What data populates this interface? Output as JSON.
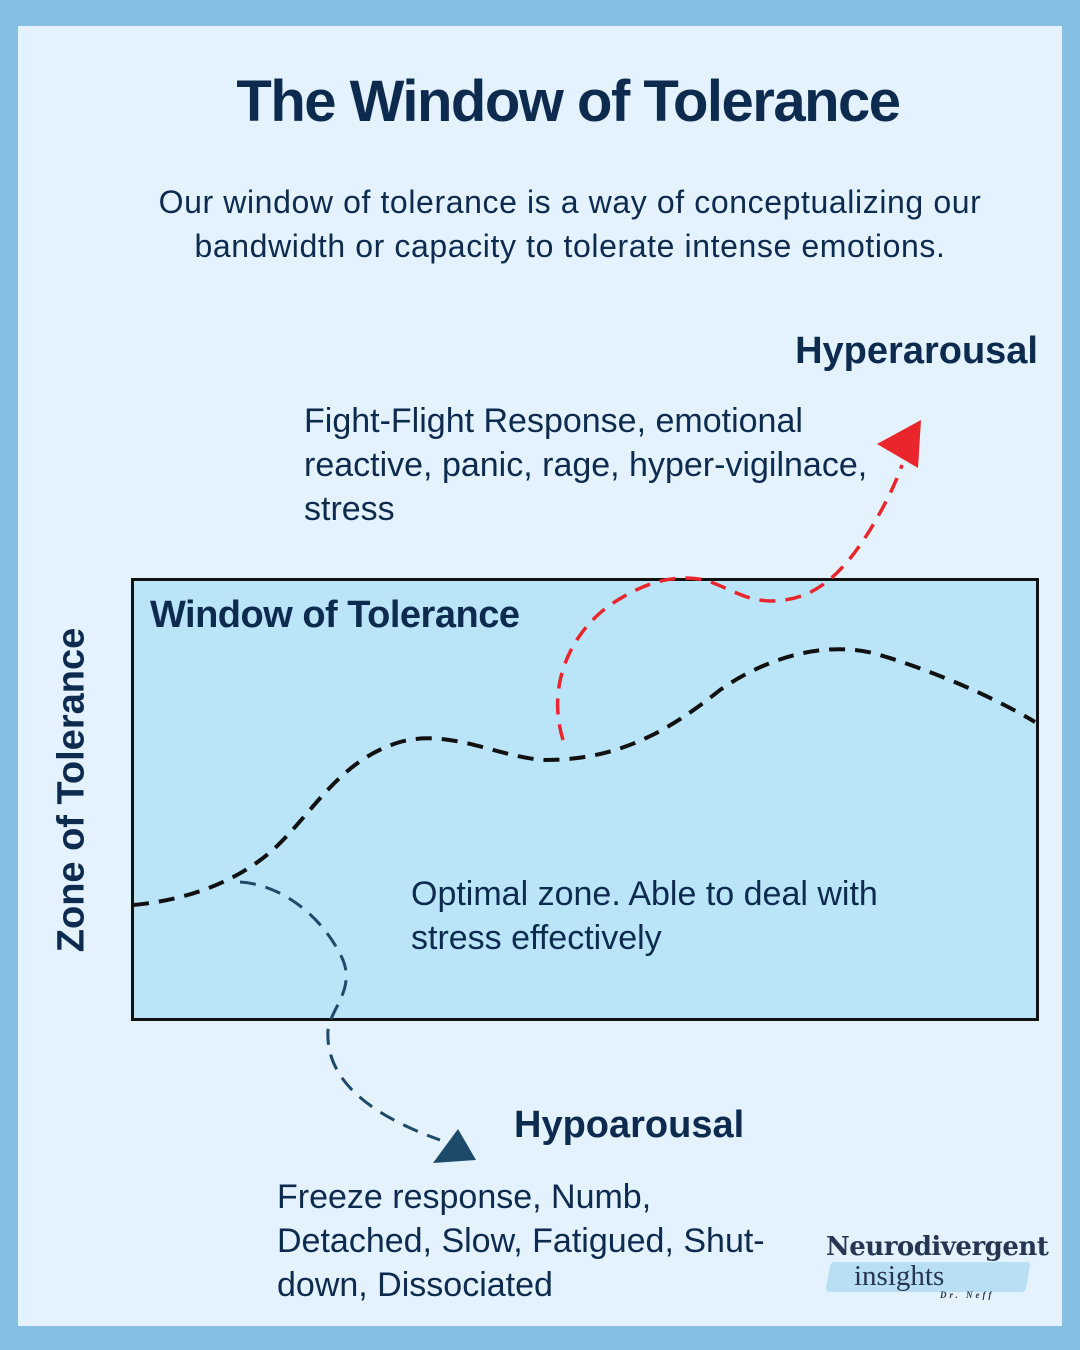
{
  "title": "The Window of Tolerance",
  "intro": "Our window of tolerance is a way of conceptualizing our bandwidth or capacity to tolerate intense emotions.",
  "hyperarousal": {
    "title": "Hyperarousal",
    "description": "Fight-Flight Response, emotional reactive, panic, rage, hyper-vigilnace, stress",
    "color": "#e8262b"
  },
  "window": {
    "label": "Window of Tolerance",
    "optimal": "Optimal zone. Able to deal with stress effectively",
    "fill_color": "#bae4f8"
  },
  "zone_label": "Zone of Tolerance",
  "hypoarousal": {
    "title": "Hypoarousal",
    "description": "Freeze response, Numb, Detached, Slow, Fatigued, Shut-down,  Dissociated",
    "color": "#1c4a68"
  },
  "logo": {
    "line1": "Neurodivergent",
    "line2": "insights",
    "line3": "Dr. Neff"
  }
}
